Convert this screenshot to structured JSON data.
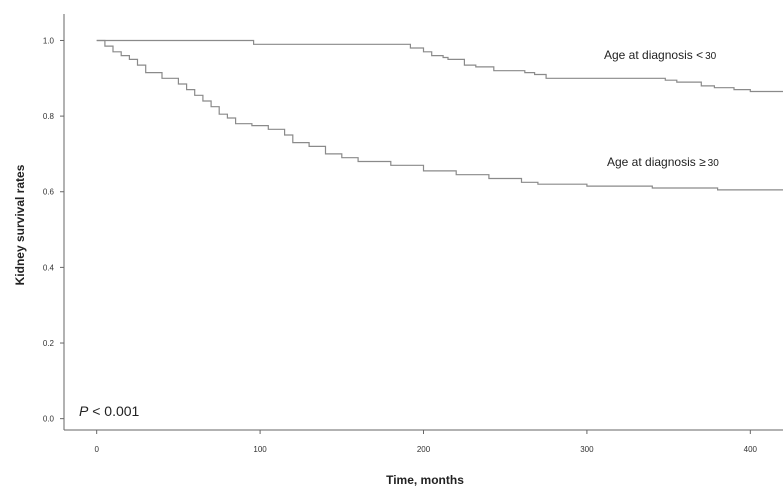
{
  "chart_data": {
    "type": "line",
    "title": "",
    "xlabel": "Time, months",
    "ylabel": "Kidney survival rates",
    "xlim": [
      -20,
      420
    ],
    "ylim": [
      -0.03,
      1.07
    ],
    "xticks": [
      0,
      100,
      200,
      300,
      400
    ],
    "yticks": [
      0.0,
      0.2,
      0.4,
      0.6,
      0.8,
      1.0
    ],
    "xtick_labels": [
      "0",
      "100",
      "200",
      "300",
      "400"
    ],
    "ytick_labels": [
      "0.0",
      "0.2",
      "0.4",
      "0.6",
      "0.8",
      "1.0"
    ],
    "grid": false,
    "line_color": "#8a8a8a",
    "annotation": {
      "italic": "P",
      "text": " < 0.001"
    },
    "series": [
      {
        "label_prefix": "Age at diagnosis ",
        "label_symbol": "<",
        "label_number": "30",
        "x": [
          0,
          2,
          96,
          96,
          192,
          192,
          200,
          205,
          212,
          215,
          225,
          232,
          243,
          262,
          268,
          275,
          342,
          348,
          355,
          370,
          378,
          390,
          400,
          420
        ],
        "y": [
          1.0,
          1.0,
          1.0,
          0.99,
          0.99,
          0.98,
          0.97,
          0.96,
          0.955,
          0.95,
          0.935,
          0.93,
          0.92,
          0.915,
          0.91,
          0.9,
          0.9,
          0.895,
          0.89,
          0.88,
          0.875,
          0.87,
          0.865,
          0.865
        ]
      },
      {
        "label_prefix": "Age at diagnosis ",
        "label_symbol": "≥",
        "label_number": "30",
        "x": [
          0,
          5,
          10,
          15,
          20,
          25,
          30,
          40,
          50,
          55,
          60,
          65,
          70,
          75,
          80,
          85,
          95,
          105,
          115,
          120,
          130,
          140,
          150,
          160,
          180,
          200,
          220,
          240,
          260,
          270,
          300,
          340,
          380,
          420
        ],
        "y": [
          1.0,
          0.985,
          0.97,
          0.96,
          0.95,
          0.935,
          0.915,
          0.9,
          0.885,
          0.87,
          0.855,
          0.84,
          0.825,
          0.805,
          0.795,
          0.78,
          0.775,
          0.765,
          0.75,
          0.73,
          0.72,
          0.7,
          0.69,
          0.68,
          0.67,
          0.655,
          0.645,
          0.635,
          0.625,
          0.62,
          0.615,
          0.61,
          0.605,
          0.605
        ]
      }
    ]
  }
}
